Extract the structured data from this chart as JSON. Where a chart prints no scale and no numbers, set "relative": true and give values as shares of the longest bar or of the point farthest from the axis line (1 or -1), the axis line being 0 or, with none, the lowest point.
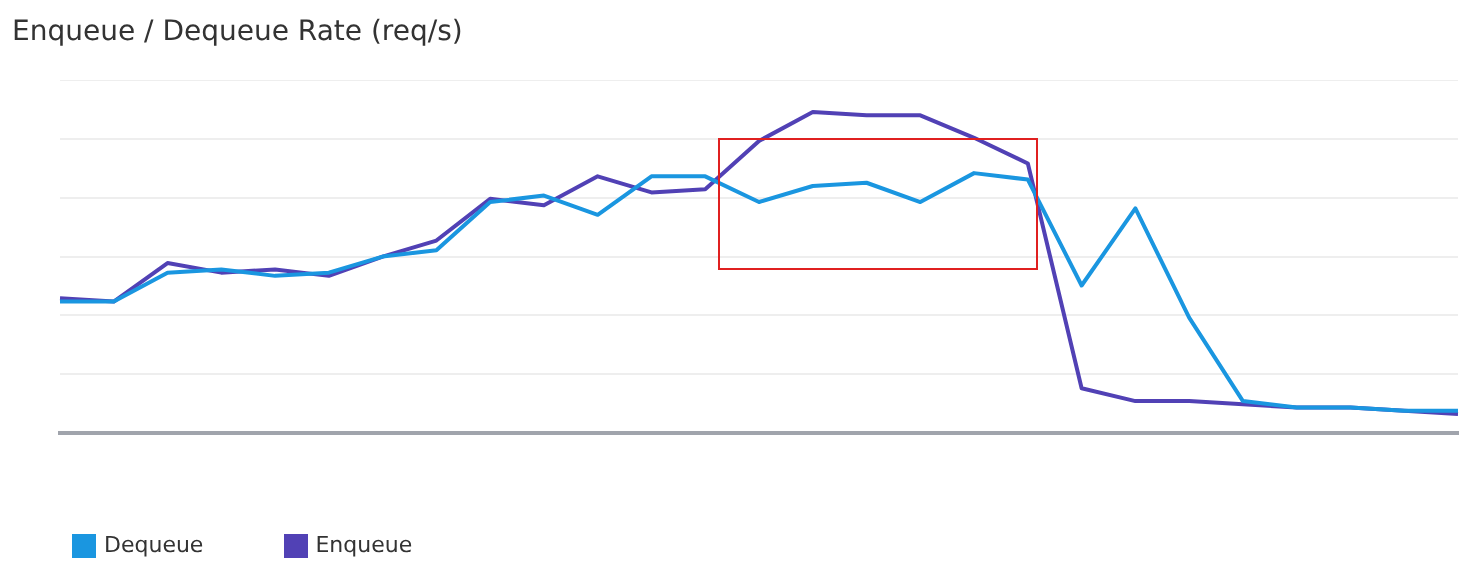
{
  "chart_data": {
    "type": "line",
    "title": "Enqueue / Dequeue Rate (req/s)",
    "relative": true,
    "grid": "y",
    "legend": "bottom left",
    "marker": "none",
    "categories": [
      null,
      null,
      null,
      null,
      null,
      null,
      null,
      null,
      null,
      null,
      null,
      null,
      null,
      null,
      null,
      null,
      null,
      null,
      null,
      null,
      null,
      null,
      null,
      null,
      null,
      null,
      null
    ],
    "series": [
      {
        "name": "Dequeue",
        "color": "#1a96e0",
        "values": [
          0.41,
          0.41,
          0.5,
          0.51,
          0.49,
          0.5,
          0.55,
          0.57,
          0.72,
          0.74,
          0.68,
          0.8,
          0.8,
          0.72,
          0.77,
          0.78,
          0.72,
          0.81,
          0.79,
          0.46,
          0.7,
          0.36,
          0.1,
          0.08,
          0.08,
          0.07,
          0.07
        ]
      },
      {
        "name": "Enqueue",
        "color": "#5141b5",
        "values": [
          0.42,
          0.41,
          0.53,
          0.5,
          0.51,
          0.49,
          0.55,
          0.6,
          0.73,
          0.71,
          0.8,
          0.75,
          0.76,
          0.91,
          1.0,
          0.99,
          0.99,
          0.92,
          0.84,
          0.14,
          0.1,
          0.1,
          0.09,
          0.08,
          0.08,
          0.07,
          0.06
        ]
      }
    ]
  }
}
